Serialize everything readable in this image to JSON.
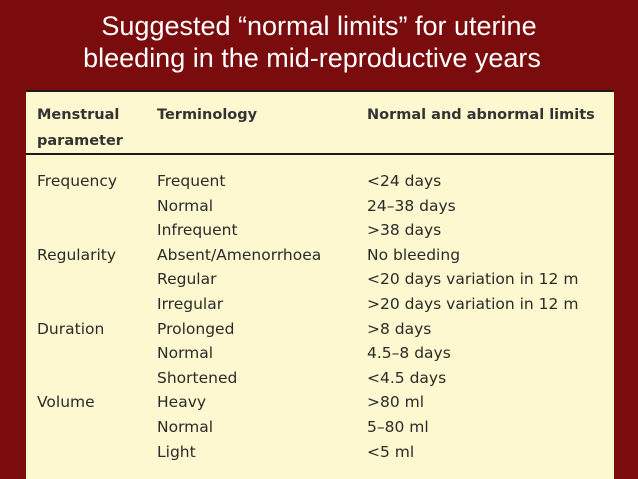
{
  "slide": {
    "title_line1": "Suggested “normal limits” for uterine",
    "title_line2": "bleeding in the mid-reproductive years"
  },
  "table": {
    "headers": {
      "col1_line1": "Menstrual",
      "col1_line2": "parameter",
      "col2": "Terminology",
      "col3": "Normal and abnormal limits"
    },
    "rows": [
      {
        "parameter": "Frequency",
        "term": "Frequent",
        "limit": "<24 days"
      },
      {
        "parameter": "",
        "term": "Normal",
        "limit": "24–38 days"
      },
      {
        "parameter": "",
        "term": "Infrequent",
        "limit": ">38 days"
      },
      {
        "parameter": "Regularity",
        "term": "Absent/Amenorrhoea",
        "limit": "No bleeding"
      },
      {
        "parameter": "",
        "term": "Regular",
        "limit": "<20 days variation in 12 m"
      },
      {
        "parameter": "",
        "term": "Irregular",
        "limit": ">20 days variation in 12 m"
      },
      {
        "parameter": "Duration",
        "term": "Prolonged",
        "limit": ">8 days"
      },
      {
        "parameter": "",
        "term": "Normal",
        "limit": "4.5–8 days"
      },
      {
        "parameter": "",
        "term": "Shortened",
        "limit": "<4.5 days"
      },
      {
        "parameter": "Volume",
        "term": "Heavy",
        "limit": ">80 ml"
      },
      {
        "parameter": "",
        "term": "Normal",
        "limit": "5–80 ml"
      },
      {
        "parameter": "",
        "term": "Light",
        "limit": "<5 ml"
      }
    ]
  }
}
